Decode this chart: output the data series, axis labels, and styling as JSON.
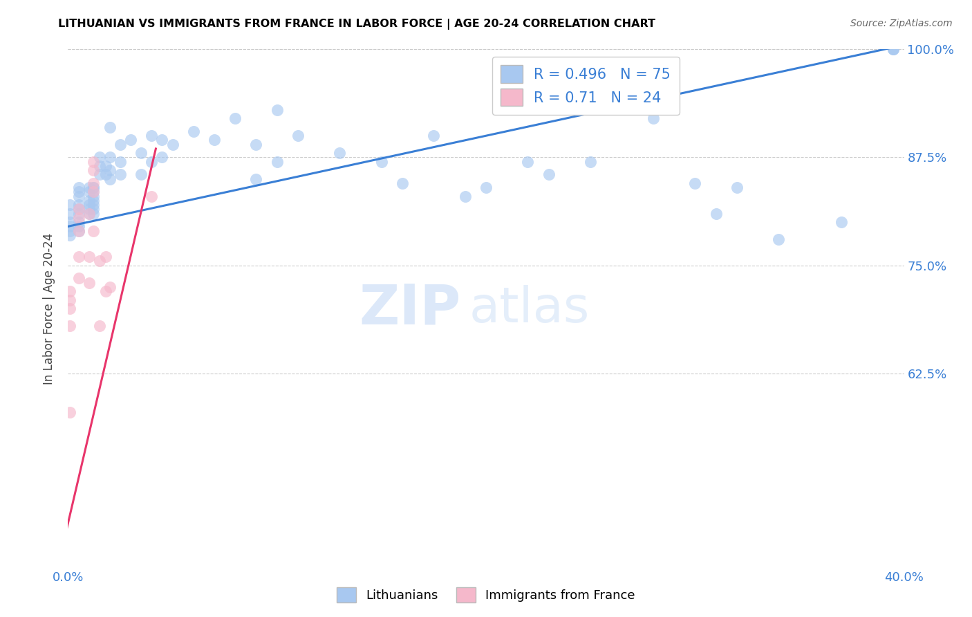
{
  "title": "LITHUANIAN VS IMMIGRANTS FROM FRANCE IN LABOR FORCE | AGE 20-24 CORRELATION CHART",
  "source": "Source: ZipAtlas.com",
  "xlabel": "",
  "ylabel": "In Labor Force | Age 20-24",
  "xlim": [
    0.0,
    0.4
  ],
  "ylim": [
    0.4,
    1.0
  ],
  "xticks": [
    0.0,
    0.05,
    0.1,
    0.15,
    0.2,
    0.25,
    0.3,
    0.35,
    0.4
  ],
  "xticklabels": [
    "0.0%",
    "",
    "",
    "",
    "",
    "",
    "",
    "",
    "40.0%"
  ],
  "yticks": [
    0.625,
    0.75,
    0.875,
    1.0
  ],
  "yticklabels": [
    "62.5%",
    "75.0%",
    "87.5%",
    "100.0%"
  ],
  "blue_R": 0.496,
  "blue_N": 75,
  "pink_R": 0.71,
  "pink_N": 24,
  "blue_color": "#a8c8f0",
  "pink_color": "#f5b8cb",
  "blue_line_color": "#3a7fd5",
  "pink_line_color": "#e8356b",
  "watermark_zip": "ZIP",
  "watermark_atlas": "atlas",
  "blue_scatter_x": [
    0.001,
    0.001,
    0.001,
    0.001,
    0.001,
    0.001,
    0.005,
    0.005,
    0.005,
    0.005,
    0.005,
    0.005,
    0.005,
    0.005,
    0.005,
    0.01,
    0.01,
    0.01,
    0.01,
    0.01,
    0.01,
    0.012,
    0.012,
    0.012,
    0.012,
    0.012,
    0.012,
    0.012,
    0.012,
    0.015,
    0.015,
    0.015,
    0.018,
    0.018,
    0.02,
    0.02,
    0.02,
    0.02,
    0.025,
    0.025,
    0.025,
    0.03,
    0.035,
    0.035,
    0.04,
    0.04,
    0.045,
    0.045,
    0.05,
    0.06,
    0.07,
    0.08,
    0.09,
    0.09,
    0.1,
    0.1,
    0.11,
    0.13,
    0.15,
    0.16,
    0.175,
    0.19,
    0.2,
    0.22,
    0.23,
    0.25,
    0.28,
    0.3,
    0.31,
    0.32,
    0.34,
    0.37,
    0.395,
    0.395,
    0.395
  ],
  "blue_scatter_y": [
    0.82,
    0.81,
    0.8,
    0.795,
    0.79,
    0.785,
    0.84,
    0.835,
    0.83,
    0.82,
    0.815,
    0.81,
    0.8,
    0.795,
    0.79,
    0.84,
    0.835,
    0.825,
    0.82,
    0.815,
    0.81,
    0.84,
    0.84,
    0.835,
    0.83,
    0.825,
    0.82,
    0.815,
    0.81,
    0.875,
    0.865,
    0.855,
    0.865,
    0.855,
    0.91,
    0.875,
    0.86,
    0.85,
    0.89,
    0.87,
    0.855,
    0.895,
    0.88,
    0.855,
    0.9,
    0.87,
    0.895,
    0.875,
    0.89,
    0.905,
    0.895,
    0.92,
    0.89,
    0.85,
    0.93,
    0.87,
    0.9,
    0.88,
    0.87,
    0.845,
    0.9,
    0.83,
    0.84,
    0.87,
    0.855,
    0.87,
    0.92,
    0.845,
    0.81,
    0.84,
    0.78,
    0.8,
    1.0,
    1.0,
    1.0
  ],
  "pink_scatter_x": [
    0.001,
    0.001,
    0.001,
    0.001,
    0.001,
    0.005,
    0.005,
    0.005,
    0.005,
    0.005,
    0.01,
    0.01,
    0.01,
    0.012,
    0.012,
    0.012,
    0.012,
    0.012,
    0.015,
    0.015,
    0.018,
    0.018,
    0.02,
    0.04
  ],
  "pink_scatter_y": [
    0.72,
    0.71,
    0.7,
    0.68,
    0.58,
    0.815,
    0.805,
    0.79,
    0.76,
    0.735,
    0.81,
    0.76,
    0.73,
    0.87,
    0.86,
    0.845,
    0.835,
    0.79,
    0.755,
    0.68,
    0.76,
    0.72,
    0.725,
    0.83
  ],
  "blue_trend_x": [
    0.0,
    0.4
  ],
  "blue_trend_y": [
    0.795,
    1.005
  ],
  "pink_trend_x": [
    -0.005,
    0.042
  ],
  "pink_trend_y": [
    0.4,
    0.885
  ]
}
